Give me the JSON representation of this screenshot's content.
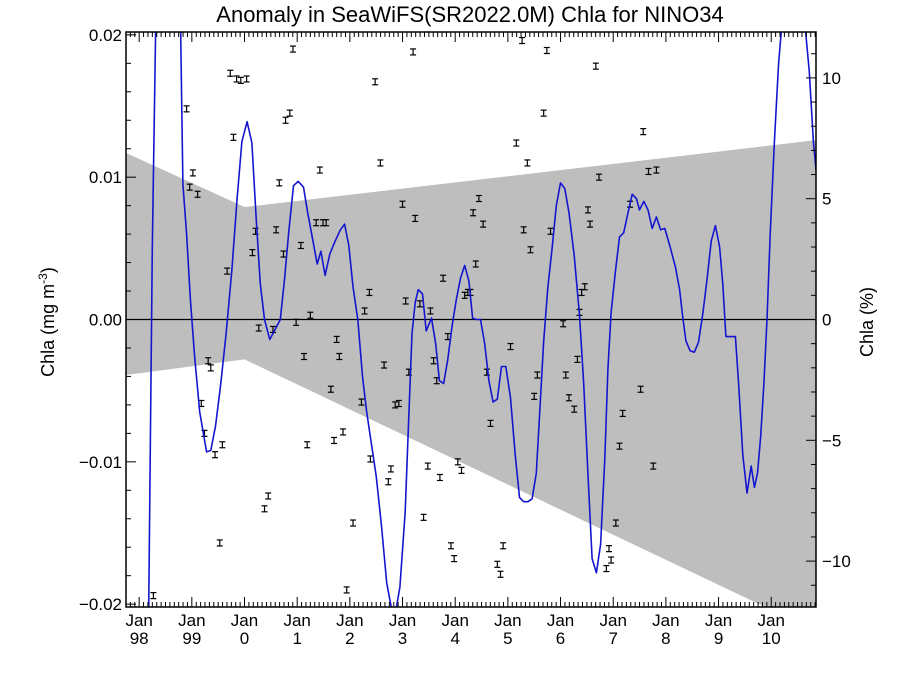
{
  "chart_data": {
    "type": "line",
    "title": "Anomaly in SeaWiFS(SR2022.0M) Chla for NINO34",
    "ylabel": "Chla (mg m",
    "ylabel_superscript": "-3",
    "ylabel_close": ")",
    "y2label": "Chla (%)",
    "xlim": [
      1997.75,
      2010.85
    ],
    "ylim": [
      -0.0202,
      0.0202
    ],
    "y2lim": [
      -11.9,
      11.9
    ],
    "x_ticks": [
      {
        "value": 1998,
        "line1": "Jan",
        "line2": "98"
      },
      {
        "value": 1999,
        "line1": "Jan",
        "line2": "99"
      },
      {
        "value": 2000,
        "line1": "Jan",
        "line2": "0"
      },
      {
        "value": 2001,
        "line1": "Jan",
        "line2": "1"
      },
      {
        "value": 2002,
        "line1": "Jan",
        "line2": "2"
      },
      {
        "value": 2003,
        "line1": "Jan",
        "line2": "3"
      },
      {
        "value": 2004,
        "line1": "Jan",
        "line2": "4"
      },
      {
        "value": 2005,
        "line1": "Jan",
        "line2": "5"
      },
      {
        "value": 2006,
        "line1": "Jan",
        "line2": "6"
      },
      {
        "value": 2007,
        "line1": "Jan",
        "line2": "7"
      },
      {
        "value": 2008,
        "line1": "Jan",
        "line2": "8"
      },
      {
        "value": 2009,
        "line1": "Jan",
        "line2": "9"
      },
      {
        "value": 2010,
        "line1": "Jan",
        "line2": "10"
      }
    ],
    "y_ticks": [
      {
        "value": 0.02,
        "label": "0.02"
      },
      {
        "value": 0.01,
        "label": "0.01"
      },
      {
        "value": 0.0,
        "label": "0.00"
      },
      {
        "value": -0.01,
        "label": "−0.01"
      },
      {
        "value": -0.02,
        "label": "−0.02"
      }
    ],
    "y2_ticks": [
      {
        "value": 10,
        "label": "10"
      },
      {
        "value": 5,
        "label": "5"
      },
      {
        "value": 0,
        "label": "0"
      },
      {
        "value": -5,
        "label": "−5"
      },
      {
        "value": -10,
        "label": "−10"
      }
    ],
    "colors": {
      "line": "#1515d0",
      "band": "#bebebe",
      "points": "#000000",
      "zero_line": "#000000"
    },
    "band": {
      "upper": [
        [
          1997.75,
          0.0117
        ],
        [
          2000.0,
          0.0079
        ],
        [
          2010.85,
          0.0126
        ]
      ],
      "lower": [
        [
          1997.75,
          -0.0039
        ],
        [
          2000.0,
          -0.0028
        ],
        [
          2010.85,
          -0.0219
        ]
      ]
    },
    "smoothed_series": [
      [
        1998.18,
        -0.021
      ],
      [
        1998.25,
        0.005
      ],
      [
        1998.32,
        0.022
      ],
      [
        1998.78,
        0.022
      ],
      [
        1998.83,
        0.0095
      ],
      [
        1998.9,
        0.006
      ],
      [
        1998.97,
        0.0015
      ],
      [
        1999.05,
        -0.0025
      ],
      [
        1999.15,
        -0.0065
      ],
      [
        1999.28,
        -0.0093
      ],
      [
        1999.36,
        -0.0092
      ],
      [
        1999.45,
        -0.0075
      ],
      [
        1999.55,
        -0.0045
      ],
      [
        1999.65,
        -0.001
      ],
      [
        1999.76,
        0.0035
      ],
      [
        1999.86,
        0.0085
      ],
      [
        1999.95,
        0.0125
      ],
      [
        2000.05,
        0.0139
      ],
      [
        2000.14,
        0.0124
      ],
      [
        2000.22,
        0.0072
      ],
      [
        2000.3,
        0.0025
      ],
      [
        2000.38,
        0.0
      ],
      [
        2000.48,
        -0.0014
      ],
      [
        2000.58,
        -0.0007
      ],
      [
        2000.68,
        0.0
      ],
      [
        2000.76,
        0.0028
      ],
      [
        2000.84,
        0.0062
      ],
      [
        2000.93,
        0.0094
      ],
      [
        2001.02,
        0.0097
      ],
      [
        2001.12,
        0.0093
      ],
      [
        2001.2,
        0.0075
      ],
      [
        2001.3,
        0.0055
      ],
      [
        2001.38,
        0.0039
      ],
      [
        2001.45,
        0.0048
      ],
      [
        2001.53,
        0.0031
      ],
      [
        2001.62,
        0.0046
      ],
      [
        2001.72,
        0.0055
      ],
      [
        2001.82,
        0.0063
      ],
      [
        2001.9,
        0.0067
      ],
      [
        2001.98,
        0.0052
      ],
      [
        2002.06,
        0.0023
      ],
      [
        2002.15,
        0.0
      ],
      [
        2002.24,
        -0.004
      ],
      [
        2002.32,
        -0.0065
      ],
      [
        2002.4,
        -0.0085
      ],
      [
        2002.5,
        -0.011
      ],
      [
        2002.6,
        -0.0145
      ],
      [
        2002.7,
        -0.0185
      ],
      [
        2002.8,
        -0.0205
      ],
      [
        2002.87,
        -0.0205
      ],
      [
        2002.95,
        -0.0188
      ],
      [
        2003.05,
        -0.0135
      ],
      [
        2003.12,
        -0.0068
      ],
      [
        2003.18,
        -0.001
      ],
      [
        2003.24,
        0.0012
      ],
      [
        2003.3,
        0.0021
      ],
      [
        2003.38,
        0.0018
      ],
      [
        2003.45,
        -0.0008
      ],
      [
        2003.55,
        0.0001
      ],
      [
        2003.63,
        -0.0017
      ],
      [
        2003.7,
        -0.0043
      ],
      [
        2003.78,
        -0.0045
      ],
      [
        2003.86,
        -0.0028
      ],
      [
        2003.94,
        -0.0005
      ],
      [
        2004.02,
        0.0014
      ],
      [
        2004.1,
        0.0029
      ],
      [
        2004.18,
        0.0038
      ],
      [
        2004.26,
        0.0027
      ],
      [
        2004.33,
        0.0001
      ],
      [
        2004.4,
        0.0
      ],
      [
        2004.48,
        0.0
      ],
      [
        2004.56,
        -0.0017
      ],
      [
        2004.64,
        -0.0043
      ],
      [
        2004.72,
        -0.0058
      ],
      [
        2004.8,
        -0.0056
      ],
      [
        2004.88,
        -0.0033
      ],
      [
        2004.96,
        -0.0033
      ],
      [
        2005.05,
        -0.0055
      ],
      [
        2005.14,
        -0.0095
      ],
      [
        2005.22,
        -0.0125
      ],
      [
        2005.3,
        -0.0128
      ],
      [
        2005.38,
        -0.0128
      ],
      [
        2005.46,
        -0.0126
      ],
      [
        2005.54,
        -0.0108
      ],
      [
        2005.6,
        -0.0068
      ],
      [
        2005.68,
        -0.0015
      ],
      [
        2005.76,
        0.0023
      ],
      [
        2005.84,
        0.005
      ],
      [
        2005.92,
        0.008
      ],
      [
        2006.0,
        0.0096
      ],
      [
        2006.08,
        0.0092
      ],
      [
        2006.16,
        0.0075
      ],
      [
        2006.26,
        0.0045
      ],
      [
        2006.36,
        0.0003
      ],
      [
        2006.44,
        -0.0045
      ],
      [
        2006.52,
        -0.0108
      ],
      [
        2006.6,
        -0.0168
      ],
      [
        2006.68,
        -0.0178
      ],
      [
        2006.76,
        -0.0158
      ],
      [
        2006.84,
        -0.0098
      ],
      [
        2006.9,
        -0.0035
      ],
      [
        2006.96,
        0.0005
      ],
      [
        2007.04,
        0.0033
      ],
      [
        2007.12,
        0.0058
      ],
      [
        2007.2,
        0.0061
      ],
      [
        2007.28,
        0.0075
      ],
      [
        2007.36,
        0.0088
      ],
      [
        2007.44,
        0.0085
      ],
      [
        2007.5,
        0.0077
      ],
      [
        2007.58,
        0.0083
      ],
      [
        2007.66,
        0.0077
      ],
      [
        2007.74,
        0.0064
      ],
      [
        2007.82,
        0.0072
      ],
      [
        2007.9,
        0.0063
      ],
      [
        2007.98,
        0.0064
      ],
      [
        2008.08,
        0.0051
      ],
      [
        2008.18,
        0.0037
      ],
      [
        2008.26,
        0.0021
      ],
      [
        2008.32,
        0.0002
      ],
      [
        2008.38,
        -0.0015
      ],
      [
        2008.46,
        -0.0022
      ],
      [
        2008.54,
        -0.0023
      ],
      [
        2008.62,
        -0.0016
      ],
      [
        2008.7,
        0.0004
      ],
      [
        2008.78,
        0.0028
      ],
      [
        2008.86,
        0.0055
      ],
      [
        2008.94,
        0.0066
      ],
      [
        2009.02,
        0.0051
      ],
      [
        2009.08,
        0.0025
      ],
      [
        2009.14,
        -0.0012
      ],
      [
        2009.22,
        -0.0012
      ],
      [
        2009.32,
        -0.0012
      ],
      [
        2009.38,
        -0.0045
      ],
      [
        2009.46,
        -0.0095
      ],
      [
        2009.54,
        -0.0122
      ],
      [
        2009.62,
        -0.0103
      ],
      [
        2009.68,
        -0.0118
      ],
      [
        2009.74,
        -0.0108
      ],
      [
        2009.8,
        -0.0082
      ],
      [
        2009.86,
        -0.0045
      ],
      [
        2009.92,
        0.0
      ],
      [
        2009.98,
        0.006
      ],
      [
        2010.06,
        0.0125
      ],
      [
        2010.14,
        0.018
      ],
      [
        2010.22,
        0.0215
      ],
      [
        2010.62,
        0.0215
      ],
      [
        2010.72,
        0.0175
      ],
      [
        2010.8,
        0.0125
      ],
      [
        2010.85,
        0.0105
      ]
    ],
    "points": [
      [
        1998.27,
        -0.0194
      ],
      [
        1998.9,
        0.0148
      ],
      [
        1998.96,
        0.0093
      ],
      [
        1999.02,
        0.0103
      ],
      [
        1999.11,
        0.0088
      ],
      [
        1999.18,
        -0.0059
      ],
      [
        1999.24,
        -0.008
      ],
      [
        1999.31,
        -0.0029
      ],
      [
        1999.36,
        -0.0034
      ],
      [
        1999.44,
        -0.0095
      ],
      [
        1999.53,
        -0.0157
      ],
      [
        1999.58,
        -0.0088
      ],
      [
        1999.67,
        0.0034
      ],
      [
        1999.73,
        0.0173
      ],
      [
        1999.79,
        0.0128
      ],
      [
        1999.85,
        0.0169
      ],
      [
        1999.93,
        0.0168
      ],
      [
        2000.04,
        0.0169
      ],
      [
        2000.15,
        0.0047
      ],
      [
        2000.21,
        0.0062
      ],
      [
        2000.27,
        -0.0006
      ],
      [
        2000.38,
        -0.0133
      ],
      [
        2000.45,
        -0.0124
      ],
      [
        2000.54,
        -0.0007
      ],
      [
        2000.6,
        0.0063
      ],
      [
        2000.66,
        0.0096
      ],
      [
        2000.74,
        0.0046
      ],
      [
        2000.78,
        0.014
      ],
      [
        2000.86,
        0.0145
      ],
      [
        2000.92,
        0.019
      ],
      [
        2000.98,
        -0.0002
      ],
      [
        2001.07,
        0.0052
      ],
      [
        2001.13,
        -0.0026
      ],
      [
        2001.19,
        -0.0088
      ],
      [
        2001.25,
        0.0003
      ],
      [
        2001.36,
        0.0068
      ],
      [
        2001.43,
        0.0105
      ],
      [
        2001.49,
        0.0068
      ],
      [
        2001.55,
        0.0068
      ],
      [
        2001.64,
        -0.0049
      ],
      [
        2001.7,
        -0.0085
      ],
      [
        2001.75,
        -0.0014
      ],
      [
        2001.8,
        -0.0026
      ],
      [
        2001.87,
        -0.0079
      ],
      [
        2001.94,
        -0.019
      ],
      [
        2002.06,
        -0.0143
      ],
      [
        2002.22,
        -0.0058
      ],
      [
        2002.28,
        0.0006
      ],
      [
        2002.37,
        0.0019
      ],
      [
        2002.39,
        -0.0098
      ],
      [
        2002.48,
        0.0167
      ],
      [
        2002.58,
        0.011
      ],
      [
        2002.65,
        -0.0032
      ],
      [
        2002.73,
        -0.0114
      ],
      [
        2002.78,
        -0.0105
      ],
      [
        2002.86,
        -0.006
      ],
      [
        2002.93,
        -0.0059
      ],
      [
        2003.0,
        0.0081
      ],
      [
        2003.06,
        0.0013
      ],
      [
        2003.12,
        -0.0037
      ],
      [
        2003.2,
        0.0188
      ],
      [
        2003.24,
        0.0071
      ],
      [
        2003.33,
        0.0011
      ],
      [
        2003.4,
        -0.0139
      ],
      [
        2003.48,
        -0.0103
      ],
      [
        2003.53,
        0.0006
      ],
      [
        2003.59,
        -0.0029
      ],
      [
        2003.65,
        -0.0043
      ],
      [
        2003.71,
        -0.0111
      ],
      [
        2003.77,
        0.0029
      ],
      [
        2003.86,
        -0.0012
      ],
      [
        2003.92,
        -0.0159
      ],
      [
        2003.98,
        -0.0168
      ],
      [
        2004.05,
        -0.01
      ],
      [
        2004.12,
        -0.0106
      ],
      [
        2004.18,
        0.0017
      ],
      [
        2004.24,
        0.0019
      ],
      [
        2004.29,
        0.0019
      ],
      [
        2004.34,
        0.0075
      ],
      [
        2004.39,
        0.0039
      ],
      [
        2004.45,
        0.0085
      ],
      [
        2004.53,
        0.0067
      ],
      [
        2004.6,
        -0.0037
      ],
      [
        2004.67,
        -0.0073
      ],
      [
        2004.8,
        -0.0172
      ],
      [
        2004.86,
        -0.0179
      ],
      [
        2004.91,
        -0.0159
      ],
      [
        2005.05,
        -0.0019
      ],
      [
        2005.16,
        0.0124
      ],
      [
        2005.27,
        0.0196
      ],
      [
        2005.3,
        0.0063
      ],
      [
        2005.37,
        0.011
      ],
      [
        2005.43,
        0.0049
      ],
      [
        2005.5,
        -0.0054
      ],
      [
        2005.56,
        -0.0039
      ],
      [
        2005.68,
        0.0145
      ],
      [
        2005.74,
        0.0189
      ],
      [
        2005.81,
        0.0062
      ],
      [
        2006.05,
        -0.0003
      ],
      [
        2006.1,
        -0.0039
      ],
      [
        2006.16,
        -0.0055
      ],
      [
        2006.26,
        -0.0063
      ],
      [
        2006.32,
        -0.0028
      ],
      [
        2006.36,
        0.0005
      ],
      [
        2006.4,
        0.0019
      ],
      [
        2006.46,
        0.0023
      ],
      [
        2006.52,
        0.0077
      ],
      [
        2006.56,
        0.0067
      ],
      [
        2006.67,
        0.0178
      ],
      [
        2006.73,
        0.01
      ],
      [
        2006.87,
        -0.0175
      ],
      [
        2006.92,
        -0.0161
      ],
      [
        2006.96,
        -0.0169
      ],
      [
        2007.05,
        -0.0143
      ],
      [
        2007.12,
        -0.0089
      ],
      [
        2007.18,
        -0.0066
      ],
      [
        2007.32,
        0.0081
      ],
      [
        2007.52,
        -0.0049
      ],
      [
        2007.57,
        0.0132
      ],
      [
        2007.67,
        0.0104
      ],
      [
        2007.76,
        -0.0103
      ],
      [
        2007.82,
        0.0105
      ]
    ]
  }
}
